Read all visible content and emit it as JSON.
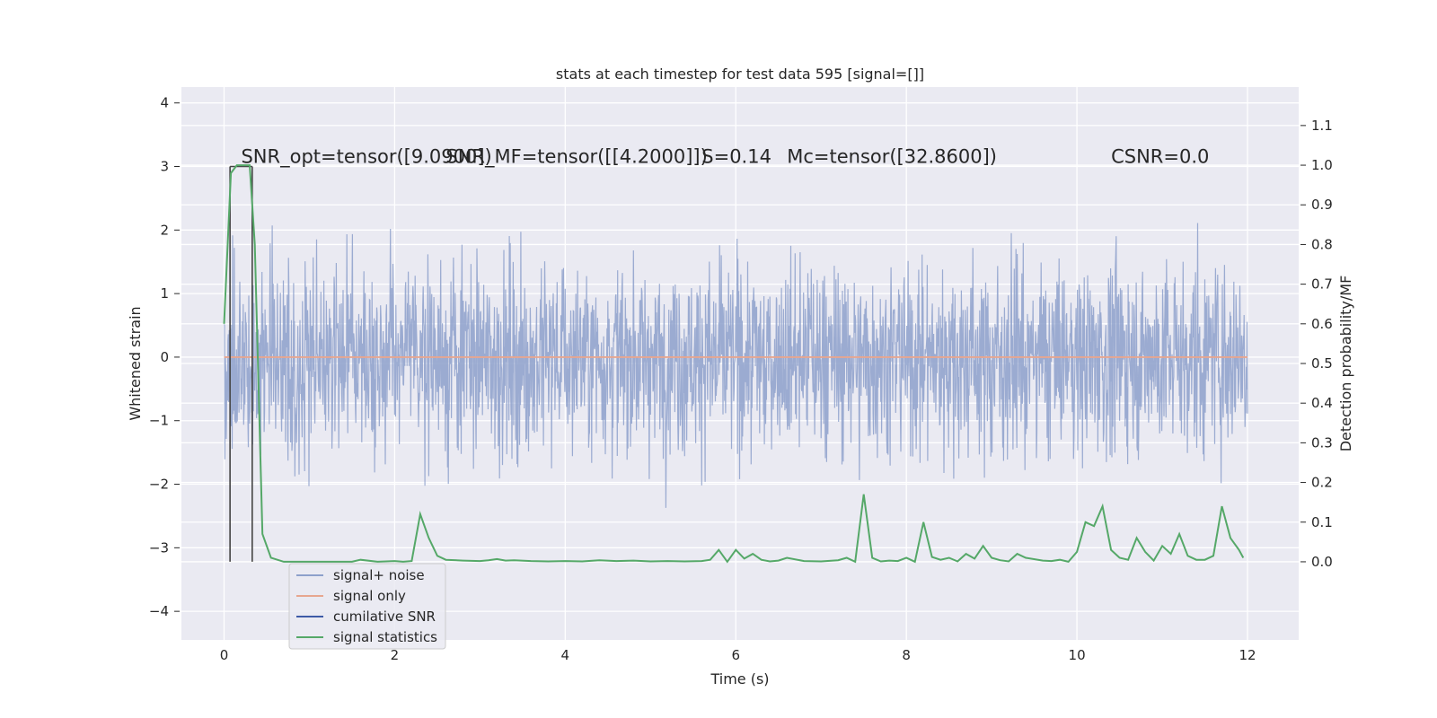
{
  "chart_data": {
    "type": "line",
    "title": "stats at each timestep for test data 595 [signal=[]]",
    "xlabel": "Time (s)",
    "ylabel": "Whitened strain",
    "y2label": "Detection probability/MF",
    "xlim": [
      -0.5,
      12.6
    ],
    "ylim": [
      -4.45,
      4.25
    ],
    "y2lim": [
      -0.197,
      1.197
    ],
    "xticks": [
      0,
      2,
      4,
      6,
      8,
      10,
      12
    ],
    "yticks": [
      -4,
      -3,
      -2,
      -1,
      0,
      1,
      2,
      3,
      4
    ],
    "y2ticks": [
      0.0,
      0.1,
      0.2,
      0.3,
      0.4,
      0.5,
      0.6,
      0.7,
      0.8,
      0.9,
      1.0,
      1.1
    ],
    "grid": true,
    "legend_position": "lower-left",
    "annotations": [
      {
        "text": "SNR_opt=tensor([9.0900])",
        "x": 0.2,
        "y": 3.1
      },
      {
        "text": "SNR_MF=tensor([[4.2000]])",
        "x": 2.6,
        "y": 3.1
      },
      {
        "text": "S=0.14",
        "x": 5.6,
        "y": 3.1
      },
      {
        "text": "Mc=tensor([32.8600])",
        "x": 6.6,
        "y": 3.1
      },
      {
        "text": "CSNR=0.0",
        "x": 10.4,
        "y": 3.1
      }
    ],
    "series": [
      {
        "name": "signal+ noise",
        "color": "#8da0cb",
        "axis": "left",
        "description": "whitened noise, approx. within +/-3.9, dense samples 0-12 s"
      },
      {
        "name": "signal only",
        "color": "#e7a68f",
        "axis": "left",
        "x": [
          0,
          12
        ],
        "y": [
          0,
          0
        ]
      },
      {
        "name": "cumilative SNR",
        "color": "#3e5aa6",
        "axis": "left",
        "x": [
          0.07,
          0.33
        ],
        "y_bottom": [
          -3.22,
          -3.22
        ],
        "y_top": [
          3.0,
          3.0
        ]
      },
      {
        "name": "signal statistics",
        "color": "#55a868",
        "axis": "right",
        "x": [
          0.0,
          0.08,
          0.15,
          0.22,
          0.3,
          0.36,
          0.45,
          0.55,
          0.7,
          0.9,
          1.1,
          1.3,
          1.5,
          1.6,
          1.8,
          2.0,
          2.1,
          2.2,
          2.3,
          2.4,
          2.5,
          2.6,
          2.8,
          3.0,
          3.1,
          3.2,
          3.3,
          3.4,
          3.6,
          3.8,
          4.0,
          4.2,
          4.4,
          4.6,
          4.8,
          5.0,
          5.2,
          5.4,
          5.6,
          5.7,
          5.8,
          5.9,
          6.0,
          6.1,
          6.2,
          6.3,
          6.4,
          6.5,
          6.6,
          6.8,
          7.0,
          7.2,
          7.3,
          7.4,
          7.5,
          7.6,
          7.7,
          7.8,
          7.9,
          8.0,
          8.1,
          8.2,
          8.3,
          8.4,
          8.5,
          8.6,
          8.7,
          8.8,
          8.9,
          9.0,
          9.1,
          9.2,
          9.3,
          9.4,
          9.6,
          9.7,
          9.8,
          9.9,
          10.0,
          10.1,
          10.2,
          10.3,
          10.4,
          10.5,
          10.6,
          10.7,
          10.8,
          10.9,
          11.0,
          11.1,
          11.2,
          11.3,
          11.4,
          11.5,
          11.6,
          11.7,
          11.8,
          11.9,
          11.95
        ],
        "y": [
          0.6,
          0.98,
          1.0,
          1.0,
          1.0,
          0.8,
          0.07,
          0.01,
          0.0,
          0.0,
          0.0,
          0.0,
          0.0,
          0.005,
          0.0,
          0.002,
          0.0,
          0.002,
          0.12,
          0.06,
          0.015,
          0.005,
          0.003,
          0.002,
          0.004,
          0.007,
          0.003,
          0.004,
          0.002,
          0.001,
          0.002,
          0.001,
          0.004,
          0.002,
          0.003,
          0.001,
          0.002,
          0.001,
          0.002,
          0.005,
          0.03,
          0.0,
          0.03,
          0.008,
          0.02,
          0.005,
          0.001,
          0.003,
          0.01,
          0.002,
          0.001,
          0.004,
          0.01,
          0.0,
          0.17,
          0.01,
          0.001,
          0.003,
          0.002,
          0.01,
          0.0,
          0.1,
          0.012,
          0.005,
          0.01,
          0.001,
          0.02,
          0.008,
          0.04,
          0.01,
          0.004,
          0.001,
          0.02,
          0.01,
          0.003,
          0.002,
          0.005,
          0.0,
          0.025,
          0.1,
          0.09,
          0.14,
          0.03,
          0.01,
          0.005,
          0.06,
          0.025,
          0.003,
          0.04,
          0.02,
          0.07,
          0.015,
          0.005,
          0.005,
          0.015,
          0.14,
          0.06,
          0.03,
          0.01
        ]
      }
    ]
  },
  "legend": {
    "items": [
      {
        "label": "signal+ noise",
        "color": "#8da0cb"
      },
      {
        "label": "signal only",
        "color": "#e7a68f"
      },
      {
        "label": "cumilative SNR",
        "color": "#3e5aa6"
      },
      {
        "label": "signal statistics",
        "color": "#55a868"
      }
    ]
  },
  "colors": {
    "plot_bg": "#eaeaf2",
    "grid": "#ffffff",
    "noise": "#8da0cb",
    "signal_only": "#e7a68f",
    "csnr": "#3e5aa6",
    "stats": "#55a868",
    "vline": "#444444"
  }
}
